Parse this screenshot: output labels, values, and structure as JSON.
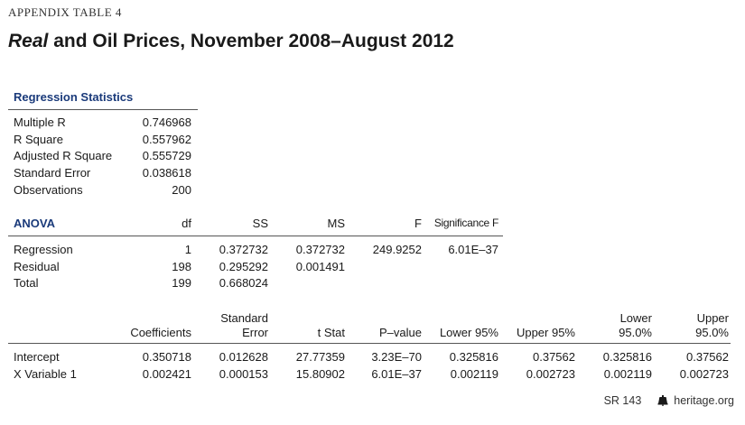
{
  "header": {
    "appendix_label": "APPENDIX TABLE 4",
    "title_italic": "Real",
    "title_rest": " and Oil Prices, November 2008–August 2012"
  },
  "regression_statistics": {
    "heading": "Regression Statistics",
    "rows": [
      {
        "label": "Multiple R",
        "value": "0.746968"
      },
      {
        "label": "R Square",
        "value": "0.557962"
      },
      {
        "label": "Adjusted R Square",
        "value": "0.555729"
      },
      {
        "label": "Standard Error",
        "value": "0.038618"
      },
      {
        "label": "Observations",
        "value": "200"
      }
    ]
  },
  "anova": {
    "heading": "ANOVA",
    "columns": [
      "df",
      "SS",
      "MS",
      "F",
      "Significance F"
    ],
    "rows": [
      {
        "label": "Regression",
        "df": "1",
        "ss": "0.372732",
        "ms": "0.372732",
        "f": "249.9252",
        "sig": "6.01E–37"
      },
      {
        "label": "Residual",
        "df": "198",
        "ss": "0.295292",
        "ms": "0.001491",
        "f": "",
        "sig": ""
      },
      {
        "label": "Total",
        "df": "199",
        "ss": "0.668024",
        "ms": "",
        "f": "",
        "sig": ""
      }
    ]
  },
  "coefficients": {
    "columns": [
      {
        "line1": "",
        "line2": "Coefficients"
      },
      {
        "line1": "Standard",
        "line2": "Error"
      },
      {
        "line1": "",
        "line2": "t Stat"
      },
      {
        "line1": "",
        "line2": "P–value"
      },
      {
        "line1": "",
        "line2": "Lower 95%"
      },
      {
        "line1": "",
        "line2": "Upper 95%"
      },
      {
        "line1": "Lower",
        "line2": "95.0%"
      },
      {
        "line1": "Upper",
        "line2": "95.0%"
      }
    ],
    "rows": [
      {
        "label": "Intercept",
        "values": [
          "0.350718",
          "0.012628",
          "27.77359",
          "3.23E–70",
          "0.325816",
          "0.37562",
          "0.325816",
          "0.37562"
        ]
      },
      {
        "label": "X Variable 1",
        "values": [
          "0.002421",
          "0.000153",
          "15.80902",
          "6.01E–37",
          "0.002119",
          "0.002723",
          "0.002119",
          "0.002723"
        ]
      }
    ]
  },
  "footer": {
    "report": "SR 143",
    "site": "heritage.org",
    "icon": "liberty-bell-icon"
  }
}
